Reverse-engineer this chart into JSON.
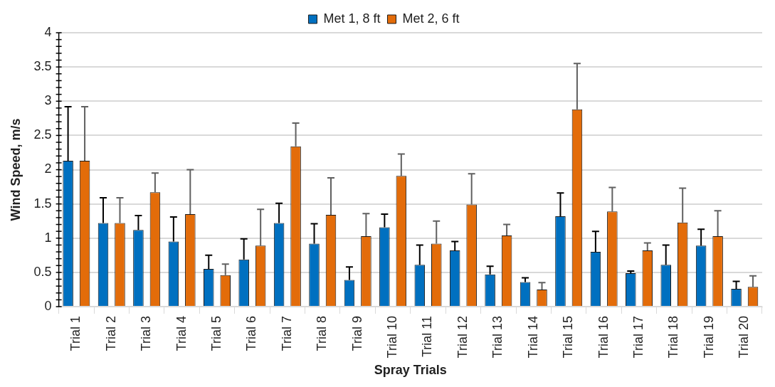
{
  "chart_data": {
    "type": "bar",
    "xlabel": "Spray Trials",
    "ylabel": "Wind Speed, m/s",
    "categories": [
      "Trial 1",
      "Trial 2",
      "Trial 3",
      "Trial 4",
      "Trial 5",
      "Trial 6",
      "Trial 7",
      "Trial 8",
      "Trial 9",
      "Trial 10",
      "Trial 11",
      "Trial 12",
      "Trial 13",
      "Trial 14",
      "Trial 15",
      "Trial 16",
      "Trial 17",
      "Trial 18",
      "Trial 19",
      "Trial 20"
    ],
    "series": [
      {
        "name": "Met 1, 8 ft",
        "color": "#0070c0",
        "values": [
          2.13,
          1.22,
          1.12,
          0.95,
          0.55,
          0.69,
          1.22,
          0.92,
          0.39,
          1.16,
          0.61,
          0.82,
          0.47,
          0.36,
          1.32,
          0.8,
          0.49,
          0.61,
          0.89,
          0.26
        ],
        "errors": [
          [
            2.13,
            2.92
          ],
          [
            1.22,
            1.59
          ],
          [
            1.12,
            1.33
          ],
          [
            0.95,
            1.31
          ],
          [
            0.55,
            0.75
          ],
          [
            0.69,
            0.99
          ],
          [
            1.22,
            1.51
          ],
          [
            0.92,
            1.21
          ],
          [
            0.39,
            0.58
          ],
          [
            1.16,
            1.35
          ],
          [
            0.61,
            0.9
          ],
          [
            0.82,
            0.95
          ],
          [
            0.47,
            0.59
          ],
          [
            0.36,
            0.42
          ],
          [
            1.32,
            1.66
          ],
          [
            0.8,
            1.1
          ],
          [
            0.49,
            0.52
          ],
          [
            0.61,
            0.9
          ],
          [
            0.89,
            1.13
          ],
          [
            0.26,
            0.37
          ]
        ]
      },
      {
        "name": "Met 2, 6 ft",
        "color": "#e36c0a",
        "values": [
          2.13,
          1.22,
          1.67,
          1.35,
          0.46,
          0.89,
          2.34,
          1.34,
          1.03,
          1.91,
          0.92,
          1.49,
          1.04,
          0.25,
          2.88,
          1.39,
          0.82,
          1.23,
          1.03,
          0.29
        ],
        "errors": [
          [
            2.13,
            2.92
          ],
          [
            1.22,
            1.59
          ],
          [
            1.67,
            1.95
          ],
          [
            1.35,
            2.0
          ],
          [
            0.46,
            0.62
          ],
          [
            0.89,
            1.42
          ],
          [
            2.34,
            2.68
          ],
          [
            1.34,
            1.88
          ],
          [
            1.03,
            1.36
          ],
          [
            1.91,
            2.23
          ],
          [
            0.92,
            1.25
          ],
          [
            1.49,
            1.94
          ],
          [
            1.04,
            1.2
          ],
          [
            0.25,
            0.35
          ],
          [
            2.88,
            3.55
          ],
          [
            1.39,
            1.74
          ],
          [
            0.82,
            0.93
          ],
          [
            1.23,
            1.73
          ],
          [
            1.03,
            1.4
          ],
          [
            0.29,
            0.45
          ]
        ]
      }
    ],
    "ylim": [
      0,
      4
    ],
    "yticks": [
      0,
      0.5,
      1,
      1.5,
      2,
      2.5,
      3,
      3.5,
      4
    ],
    "grid": "y",
    "legend": "top"
  }
}
